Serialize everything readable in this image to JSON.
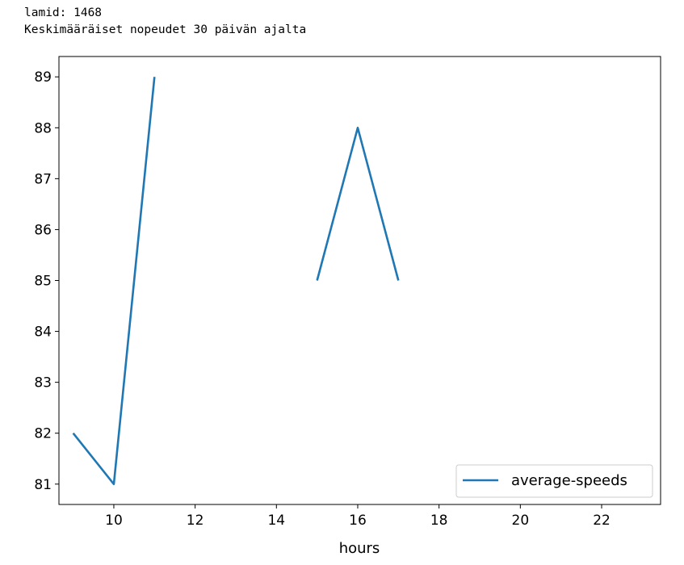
{
  "output": {
    "lines": [
      "lamid: 1468",
      "Keskimääräiset nopeudet 30 päivän ajalta"
    ]
  },
  "chart_data": {
    "type": "line",
    "xlabel": "hours",
    "ylabel": "",
    "xlim": [
      8.65,
      23.45
    ],
    "ylim": [
      80.6,
      89.4
    ],
    "x_ticks": [
      10,
      12,
      14,
      16,
      18,
      20,
      22
    ],
    "y_ticks": [
      81,
      82,
      83,
      84,
      85,
      86,
      87,
      88,
      89
    ],
    "grid": false,
    "legend_position": "lower-right",
    "series": [
      {
        "name": "average-speeds",
        "color": "#1f77b4",
        "x": [
          9,
          10,
          11,
          12,
          13,
          14,
          15,
          16,
          17,
          18,
          19,
          20,
          21,
          22,
          23
        ],
        "y": [
          82,
          81,
          89,
          null,
          null,
          null,
          85,
          88,
          85,
          null,
          null,
          null,
          null,
          null,
          null
        ]
      }
    ]
  }
}
